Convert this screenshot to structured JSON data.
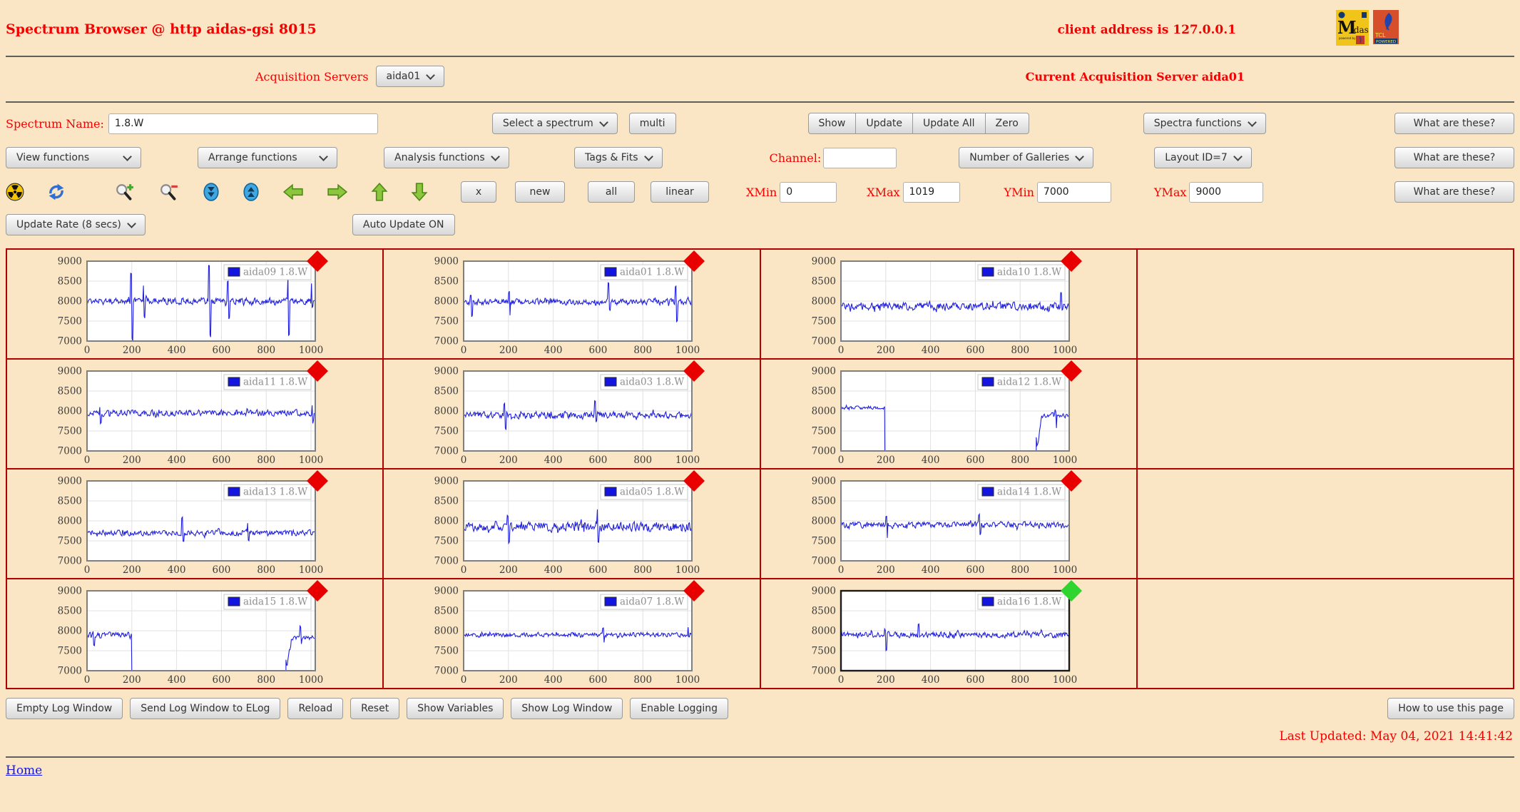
{
  "header": {
    "title": "Spectrum Browser @ http aidas-gsi 8015",
    "client_address": "client address is 127.0.0.1",
    "logos": [
      "midas-logo",
      "tcl-powered-logo"
    ]
  },
  "acquisition_row": {
    "label": "Acquisition Servers",
    "server": "aida01",
    "current": "Current Acquisition Server aida01"
  },
  "spectrum_row": {
    "name_label": "Spectrum Name:",
    "name_value": "1.8.W",
    "select_spectrum": "Select a spectrum",
    "multi_button": "multi",
    "show_button": "Show",
    "update_button": "Update",
    "update_all_button": "Update All",
    "zero_button": "Zero",
    "spectra_functions": "Spectra functions",
    "what_are_these_button": "What are these?"
  },
  "functions_row": {
    "view_functions": "View functions",
    "arrange_functions": "Arrange functions",
    "analysis_functions": "Analysis functions",
    "tags_fits": "Tags & Fits",
    "channel_label": "Channel:",
    "channel_value": "",
    "number_of_galleries": "Number of Galleries",
    "layout_id": "Layout ID=7",
    "what_are_these_button": "What are these?"
  },
  "toolbar_row": {
    "icons": [
      "radiation-icon",
      "refresh-icon",
      "zoom-in-icon",
      "zoom-out-icon",
      "compress-vertical-icon",
      "expand-vertical-icon",
      "pan-left-icon",
      "pan-right-icon",
      "pan-up-icon",
      "pan-down-icon"
    ],
    "x_button": "x",
    "new_button": "new",
    "all_button": "all",
    "linear_button": "linear",
    "xmin_label": "XMin",
    "xmin_value": "0",
    "xmax_label": "XMax",
    "xmax_value": "1019",
    "ymin_label": "YMin",
    "ymin_value": "7000",
    "ymax_label": "YMax",
    "ymax_value": "9000",
    "what_are_these_button": "What are these?"
  },
  "update_row": {
    "update_rate": "Update Rate (8 secs)",
    "auto_update_button": "Auto Update ON"
  },
  "footer": {
    "buttons": [
      "Empty Log Window",
      "Send Log Window to ELog",
      "Reload",
      "Reset",
      "Show Variables",
      "Show Log Window",
      "Enable Logging"
    ],
    "how_to_button": "How to use this page",
    "last_updated": "Last Updated: May 04, 2021 14:41:42",
    "home_link": "Home"
  },
  "colors": {
    "background": "#fae6c5",
    "accent_red_text": "#f40000",
    "grid_border": "#b30000",
    "line_color": "#2121dd",
    "marker_red": "#e80000",
    "marker_green": "#2fd42f",
    "plot_border": "#7f7f7f",
    "selected_plot_border": "#1a1a1a"
  },
  "chart_data": {
    "type": "line",
    "xlim": [
      0,
      1019
    ],
    "ylim": [
      7000,
      9000
    ],
    "xticks": [
      0,
      200,
      400,
      600,
      800,
      1000
    ],
    "yticks": [
      7000,
      7500,
      8000,
      8500,
      9000
    ],
    "grid": true,
    "legend_position": "top-right",
    "line_color": "#2121dd",
    "marker_red": "#e80000",
    "marker_green": "#2fd42f",
    "layout": {
      "rows": 4,
      "cols": 4,
      "note": "4th column cells are empty"
    },
    "charts": [
      {
        "name": "aida09",
        "legend": "aida09 1.8.W",
        "marker": "red",
        "selected": false,
        "seed": 9,
        "baseline": 8000,
        "noise": 110,
        "spikes": [
          {
            "x": 200,
            "lo": 7000,
            "hi": 8750
          },
          {
            "x": 255,
            "lo": 7550,
            "hi": 8400
          },
          {
            "x": 548,
            "lo": 7100,
            "hi": 8900
          },
          {
            "x": 632,
            "lo": 7550,
            "hi": 8550
          },
          {
            "x": 900,
            "lo": 7100,
            "hi": 8650
          },
          {
            "x": 1005,
            "lo": 7800,
            "hi": 8450
          }
        ]
      },
      {
        "name": "aida01",
        "legend": "aida01 1.8.W",
        "marker": "red",
        "selected": false,
        "seed": 1,
        "baseline": 7980,
        "noise": 100,
        "spikes": [
          {
            "x": 35,
            "lo": 7600,
            "hi": 8200
          },
          {
            "x": 205,
            "lo": 7600,
            "hi": 8250
          },
          {
            "x": 650,
            "lo": 7750,
            "hi": 8500
          },
          {
            "x": 950,
            "lo": 7450,
            "hi": 8400
          }
        ]
      },
      {
        "name": "aida10",
        "legend": "aida10 1.8.W",
        "marker": "red",
        "selected": false,
        "seed": 10,
        "baseline": 7870,
        "noise": 130,
        "spikes": [
          {
            "x": 985,
            "lo": 7750,
            "hi": 8250
          }
        ]
      },
      {
        "name": "aida11",
        "legend": "aida11 1.8.W",
        "marker": "red",
        "selected": false,
        "seed": 11,
        "baseline": 7950,
        "noise": 100,
        "spikes": [
          {
            "x": 60,
            "lo": 7640,
            "hi": 8150
          },
          {
            "x": 1008,
            "lo": 7690,
            "hi": 8150
          }
        ]
      },
      {
        "name": "aida03",
        "legend": "aida03 1.8.W",
        "marker": "red",
        "selected": false,
        "seed": 3,
        "baseline": 7900,
        "noise": 110,
        "spikes": [
          {
            "x": 185,
            "lo": 7520,
            "hi": 8200
          },
          {
            "x": 590,
            "lo": 7700,
            "hi": 8300
          }
        ]
      },
      {
        "name": "aida12",
        "legend": "aida12 1.8.W",
        "marker": "red",
        "selected": false,
        "seed": 12,
        "baseline": 8080,
        "noise": 60,
        "segments": [
          {
            "x0": 0,
            "x1": 196,
            "baseline": 8080,
            "noise": 55,
            "drop_end": true
          },
          {
            "x0": 872,
            "x1": 1019,
            "baseline": 7890,
            "noise": 95,
            "rise_start": true
          }
        ],
        "spikes": [
          {
            "x": 960,
            "lo": 7520,
            "hi": 8050
          }
        ]
      },
      {
        "name": "aida13",
        "legend": "aida13 1.8.W",
        "marker": "red",
        "selected": false,
        "seed": 13,
        "baseline": 7700,
        "noise": 90,
        "spikes": [
          {
            "x": 428,
            "lo": 7470,
            "hi": 8100
          },
          {
            "x": 720,
            "lo": 7500,
            "hi": 7980
          }
        ]
      },
      {
        "name": "aida05",
        "legend": "aida05 1.8.W",
        "marker": "red",
        "selected": false,
        "seed": 5,
        "baseline": 7850,
        "noise": 150,
        "spikes": [
          {
            "x": 200,
            "lo": 7430,
            "hi": 8150
          },
          {
            "x": 600,
            "lo": 7450,
            "hi": 8300
          }
        ]
      },
      {
        "name": "aida14",
        "legend": "aida14 1.8.W",
        "marker": "red",
        "selected": false,
        "seed": 14,
        "baseline": 7900,
        "noise": 100,
        "spikes": [
          {
            "x": 205,
            "lo": 7550,
            "hi": 8150
          },
          {
            "x": 620,
            "lo": 7650,
            "hi": 8200
          }
        ]
      },
      {
        "name": "aida15",
        "legend": "aida15 1.8.W",
        "marker": "red",
        "selected": false,
        "seed": 15,
        "baseline": 7900,
        "noise": 90,
        "segments": [
          {
            "x0": 0,
            "x1": 200,
            "baseline": 7900,
            "noise": 90,
            "drop_end": true
          },
          {
            "x0": 888,
            "x1": 1019,
            "baseline": 7820,
            "noise": 90,
            "rise_start": true
          }
        ],
        "spikes": [
          {
            "x": 30,
            "lo": 7620,
            "hi": 8050
          },
          {
            "x": 955,
            "lo": 7650,
            "hi": 8160
          }
        ]
      },
      {
        "name": "aida07",
        "legend": "aida07 1.8.W",
        "marker": "red",
        "selected": false,
        "seed": 7,
        "baseline": 7900,
        "noise": 75,
        "spikes": [
          {
            "x": 625,
            "lo": 7700,
            "hi": 8120
          },
          {
            "x": 1005,
            "lo": 7800,
            "hi": 8120
          }
        ]
      },
      {
        "name": "aida16",
        "legend": "aida16 1.8.W",
        "marker": "green",
        "selected": true,
        "seed": 16,
        "baseline": 7900,
        "noise": 95,
        "spikes": [
          {
            "x": 200,
            "lo": 7480,
            "hi": 8050
          },
          {
            "x": 350,
            "lo": 7800,
            "hi": 8200
          }
        ]
      }
    ]
  }
}
